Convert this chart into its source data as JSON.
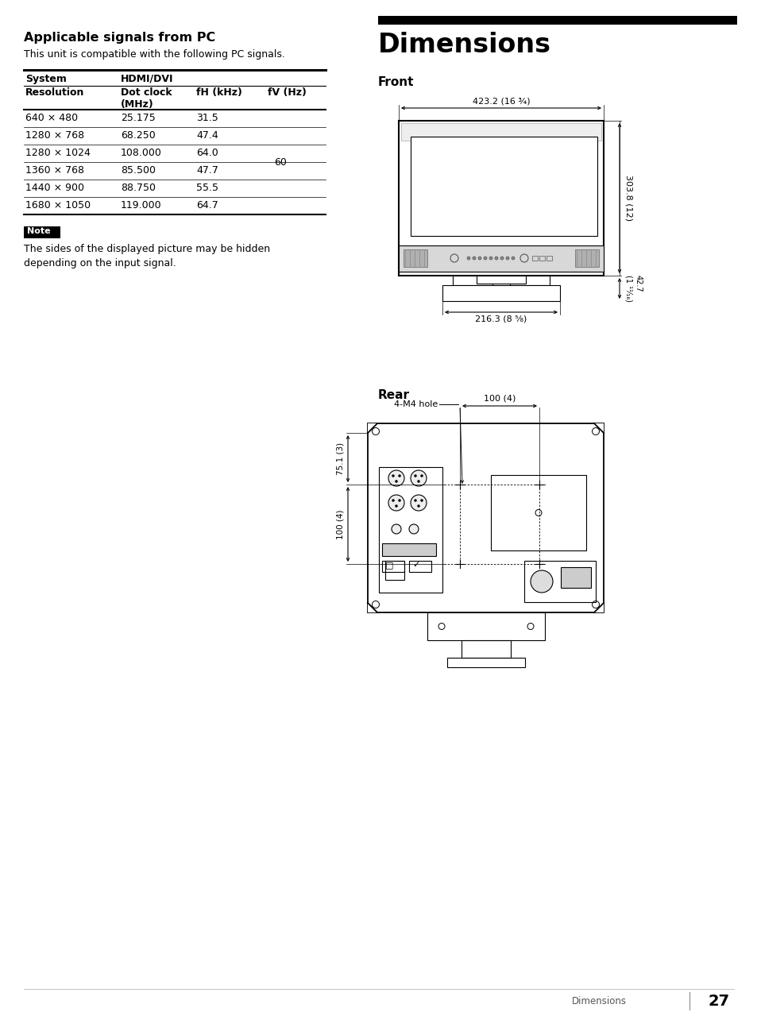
{
  "bg_color": "#ffffff",
  "section_title_left": "Applicable signals from PC",
  "section_desc_left": "This unit is compatible with the following PC signals.",
  "table_header1": "System",
  "table_header2": "HDMI/DVI",
  "table_col1": "Resolution",
  "table_col2": "Dot clock\n(MHz)",
  "table_col3": "fH (kHz)",
  "table_col4": "fV (Hz)",
  "table_data": [
    [
      "640 × 480",
      "25.175",
      "31.5",
      ""
    ],
    [
      "1280 × 768",
      "68.250",
      "47.4",
      ""
    ],
    [
      "1280 × 1024",
      "108.000",
      "64.0",
      ""
    ],
    [
      "1360 × 768",
      "85.500",
      "47.7",
      "60"
    ],
    [
      "1440 × 900",
      "88.750",
      "55.5",
      ""
    ],
    [
      "1680 × 1050",
      "119.000",
      "64.7",
      ""
    ]
  ],
  "note_text": "The sides of the displayed picture may be hidden\ndepending on the input signal.",
  "section_title_right": "Dimensions",
  "front_label": "Front",
  "rear_label": "Rear",
  "dim_width_label": "423.2 (16 ¾)",
  "dim_height_label": "303.8 (12)",
  "dim_base_width_label": "216.3 (8 ⁵⁄₈)",
  "dim_base_height_label": "42.7\n(1 ¹¹⁄₁₆)",
  "rear_hole_label": "4-M4 hole",
  "rear_100h_label": "100 (4)",
  "rear_75_label": "75.1 (3)",
  "rear_100v_label": "100 (4)",
  "footer_text": "Dimensions",
  "footer_page": "27"
}
